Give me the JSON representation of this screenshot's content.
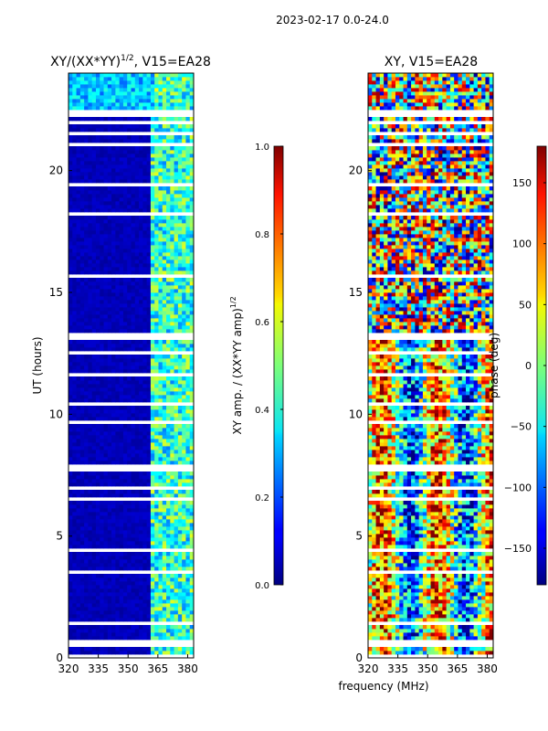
{
  "figure_title": "2023-02-17 0.0-24.0",
  "x_label": "frequency (MHz)",
  "chart_data": [
    {
      "type": "heatmap",
      "title_main": "XY/(XX*YY)",
      "title_exp": "1/2",
      "title_suffix": ", V15=EA28",
      "ylabel": "UT (hours)",
      "xlim": [
        320,
        383
      ],
      "ylim": [
        0,
        24
      ],
      "xticks": [
        "320",
        "335",
        "350",
        "365",
        "380"
      ],
      "xtick_values": [
        320,
        335,
        350,
        365,
        380
      ],
      "yticks": [
        "0",
        "5",
        "10",
        "15",
        "20"
      ],
      "ytick_values": [
        0,
        5,
        10,
        15,
        20
      ],
      "colorbar_label_main": "XY amp. / (XX*YY amp)",
      "colorbar_label_exp": "1/2",
      "colorbar_range": [
        0.0,
        1.0
      ],
      "colorbar_ticks": [
        "0.0",
        "0.2",
        "0.4",
        "0.6",
        "0.8",
        "1.0"
      ],
      "colorbar_tick_values": [
        0.0,
        0.2,
        0.4,
        0.6,
        0.8,
        1.0
      ],
      "colormap": "jet"
    },
    {
      "type": "heatmap",
      "title": "XY, V15=EA28",
      "xlim": [
        320,
        383
      ],
      "ylim": [
        0,
        24
      ],
      "xticks": [
        "320",
        "335",
        "350",
        "365",
        "380"
      ],
      "xtick_values": [
        320,
        335,
        350,
        365,
        380
      ],
      "yticks": [
        "0",
        "5",
        "10",
        "15",
        "20"
      ],
      "ytick_values": [
        0,
        5,
        10,
        15,
        20
      ],
      "colorbar_label": "phase (deg)",
      "colorbar_range": [
        -180,
        180
      ],
      "colorbar_ticks": [
        "−150",
        "−100",
        "−50",
        "0",
        "50",
        "100",
        "150"
      ],
      "colorbar_tick_values": [
        -150,
        -100,
        -50,
        0,
        50,
        100,
        150
      ],
      "colormap": "jet"
    }
  ]
}
